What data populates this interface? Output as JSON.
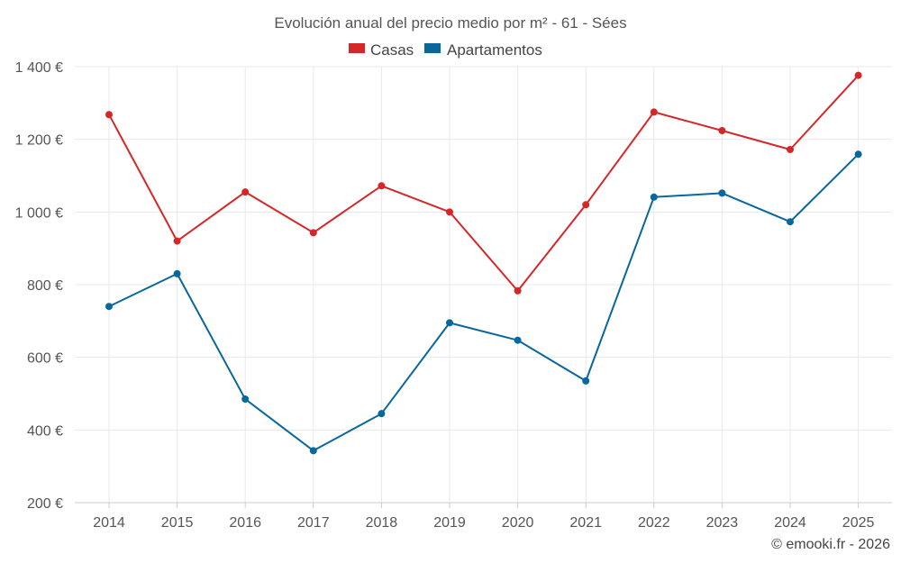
{
  "chart_data": {
    "type": "line",
    "title": "Evolución anual del precio medio por m² - 61 - Sées",
    "categories": [
      "2014",
      "2015",
      "2016",
      "2017",
      "2018",
      "2019",
      "2020",
      "2021",
      "2022",
      "2023",
      "2024",
      "2025"
    ],
    "series": [
      {
        "name": "Casas",
        "color": "#d62728",
        "values": [
          1268,
          920,
          1055,
          943,
          1072,
          1000,
          783,
          1020,
          1275,
          1224,
          1172,
          1376
        ]
      },
      {
        "name": "Apartamentos",
        "color": "#08679c",
        "values": [
          740,
          830,
          485,
          343,
          445,
          695,
          647,
          535,
          1041,
          1052,
          973,
          1159
        ]
      }
    ],
    "y_ticks": [
      200,
      400,
      600,
      800,
      1000,
      1200,
      1400
    ],
    "y_tick_labels": [
      "200 €",
      "400 €",
      "600 €",
      "800 €",
      "1 000 €",
      "1 200 €",
      "1 400 €"
    ],
    "ylim": [
      200,
      1400
    ],
    "xlabel": "",
    "ylabel": "",
    "legend_position": "top-center",
    "grid": true
  },
  "credit": "© emooki.fr - 2026"
}
